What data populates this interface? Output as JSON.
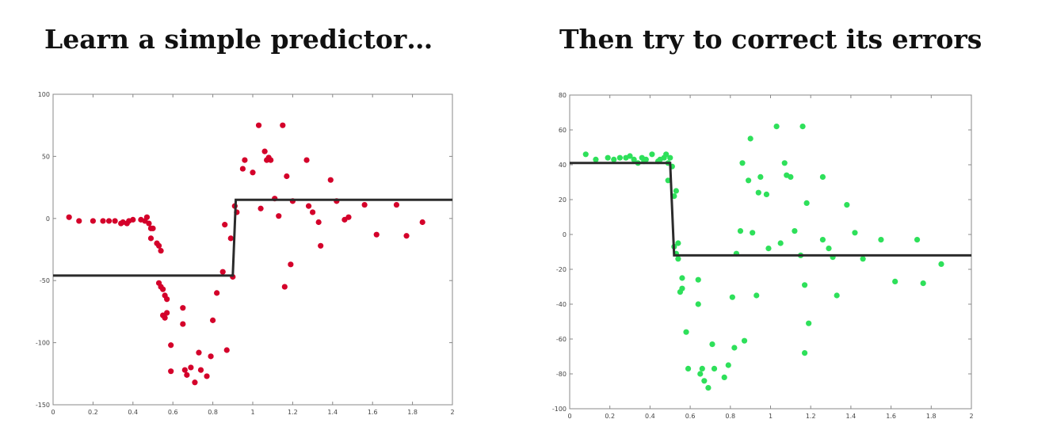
{
  "panels": [
    {
      "title": "Learn a simple predictor…"
    },
    {
      "title": "Then try to correct its errors"
    }
  ],
  "chart_data": [
    {
      "type": "scatter",
      "title": "Learn a simple predictor…",
      "xlim": [
        0,
        2
      ],
      "ylim": [
        -150,
        100
      ],
      "x_ticks": [
        0,
        0.2,
        0.4,
        0.6,
        0.8,
        1,
        1.2,
        1.4,
        1.6,
        1.8,
        2
      ],
      "x_tick_labels": [
        "0",
        "0.2",
        "0.4",
        "0.6",
        "0.8",
        "1",
        "1.2",
        "1.4",
        "1.6",
        "1.8",
        "2"
      ],
      "y_ticks": [
        -150,
        -100,
        -50,
        0,
        50,
        100
      ],
      "y_tick_labels": [
        "-150",
        "-100",
        "-50",
        "0",
        "50",
        "100"
      ],
      "grid": false,
      "point_color": "#d4002a",
      "line_color": "#2b2b2b",
      "points": [
        [
          0.08,
          1
        ],
        [
          0.13,
          -2
        ],
        [
          0.2,
          -2
        ],
        [
          0.25,
          -2
        ],
        [
          0.28,
          -2
        ],
        [
          0.31,
          -2
        ],
        [
          0.34,
          -4
        ],
        [
          0.35,
          -3
        ],
        [
          0.37,
          -4
        ],
        [
          0.38,
          -2
        ],
        [
          0.4,
          -1
        ],
        [
          0.44,
          -1
        ],
        [
          0.46,
          -2
        ],
        [
          0.47,
          1
        ],
        [
          0.48,
          -4
        ],
        [
          0.49,
          -8
        ],
        [
          0.49,
          -16
        ],
        [
          0.5,
          -8
        ],
        [
          0.52,
          -20
        ],
        [
          0.53,
          -22
        ],
        [
          0.54,
          -26
        ],
        [
          0.53,
          -52
        ],
        [
          0.54,
          -55
        ],
        [
          0.55,
          -57
        ],
        [
          0.56,
          -62
        ],
        [
          0.57,
          -65
        ],
        [
          0.55,
          -78
        ],
        [
          0.56,
          -80
        ],
        [
          0.57,
          -76
        ],
        [
          0.59,
          -102
        ],
        [
          0.59,
          -123
        ],
        [
          0.65,
          -72
        ],
        [
          0.65,
          -85
        ],
        [
          0.66,
          -122
        ],
        [
          0.67,
          -126
        ],
        [
          0.69,
          -120
        ],
        [
          0.71,
          -132
        ],
        [
          0.73,
          -108
        ],
        [
          0.74,
          -122
        ],
        [
          0.77,
          -127
        ],
        [
          0.79,
          -111
        ],
        [
          0.8,
          -82
        ],
        [
          0.82,
          -60
        ],
        [
          0.85,
          -43
        ],
        [
          0.87,
          -106
        ],
        [
          0.86,
          -5
        ],
        [
          0.89,
          -16
        ],
        [
          0.9,
          -47
        ],
        [
          0.91,
          10
        ],
        [
          0.92,
          5
        ],
        [
          0.95,
          40
        ],
        [
          0.96,
          47
        ],
        [
          1.0,
          37
        ],
        [
          1.03,
          75
        ],
        [
          1.04,
          8
        ],
        [
          1.06,
          54
        ],
        [
          1.07,
          47
        ],
        [
          1.08,
          49
        ],
        [
          1.09,
          47
        ],
        [
          1.11,
          16
        ],
        [
          1.13,
          2
        ],
        [
          1.15,
          75
        ],
        [
          1.16,
          -55
        ],
        [
          1.17,
          34
        ],
        [
          1.19,
          -37
        ],
        [
          1.2,
          14
        ],
        [
          1.27,
          47
        ],
        [
          1.28,
          10
        ],
        [
          1.3,
          5
        ],
        [
          1.33,
          -3
        ],
        [
          1.34,
          -22
        ],
        [
          1.39,
          31
        ],
        [
          1.42,
          14
        ],
        [
          1.46,
          -1
        ],
        [
          1.48,
          1
        ],
        [
          1.56,
          11
        ],
        [
          1.62,
          -13
        ],
        [
          1.72,
          11
        ],
        [
          1.77,
          -14
        ],
        [
          1.85,
          -3
        ]
      ],
      "fit_line": [
        [
          0,
          -46
        ],
        [
          0.9,
          -46
        ],
        [
          0.915,
          15
        ],
        [
          2,
          15
        ]
      ]
    },
    {
      "type": "scatter",
      "title": "Then try to correct its errors",
      "xlim": [
        0,
        2
      ],
      "ylim": [
        -100,
        80
      ],
      "x_ticks": [
        0,
        0.2,
        0.4,
        0.6,
        0.8,
        1,
        1.2,
        1.4,
        1.6,
        1.8,
        2
      ],
      "x_tick_labels": [
        "0",
        "0.2",
        "0.4",
        "0.6",
        "0.8",
        "1",
        "1.2",
        "1.4",
        "1.6",
        "1.8",
        "2"
      ],
      "y_ticks": [
        -100,
        -80,
        -60,
        -40,
        -20,
        0,
        20,
        40,
        60,
        80
      ],
      "y_tick_labels": [
        "-100",
        "-80",
        "-60",
        "-40",
        "-20",
        "0",
        "20",
        "40",
        "60",
        "80"
      ],
      "grid": false,
      "point_color": "#2ee05a",
      "line_color": "#2b2b2b",
      "points": [
        [
          0.08,
          46
        ],
        [
          0.13,
          43
        ],
        [
          0.19,
          44
        ],
        [
          0.22,
          43
        ],
        [
          0.25,
          44
        ],
        [
          0.28,
          44
        ],
        [
          0.3,
          45
        ],
        [
          0.32,
          43
        ],
        [
          0.34,
          41
        ],
        [
          0.36,
          44
        ],
        [
          0.37,
          42
        ],
        [
          0.38,
          43
        ],
        [
          0.41,
          46
        ],
        [
          0.44,
          42
        ],
        [
          0.45,
          43
        ],
        [
          0.47,
          44
        ],
        [
          0.48,
          46
        ],
        [
          0.49,
          41
        ],
        [
          0.49,
          31
        ],
        [
          0.5,
          44
        ],
        [
          0.51,
          39
        ],
        [
          0.52,
          22
        ],
        [
          0.53,
          25
        ],
        [
          0.52,
          -7
        ],
        [
          0.53,
          -11
        ],
        [
          0.54,
          -5
        ],
        [
          0.54,
          -14
        ],
        [
          0.55,
          -33
        ],
        [
          0.56,
          -31
        ],
        [
          0.56,
          -25
        ],
        [
          0.58,
          -56
        ],
        [
          0.59,
          -77
        ],
        [
          0.64,
          -26
        ],
        [
          0.64,
          -40
        ],
        [
          0.65,
          -80
        ],
        [
          0.66,
          -77
        ],
        [
          0.67,
          -84
        ],
        [
          0.69,
          -88
        ],
        [
          0.71,
          -63
        ],
        [
          0.72,
          -77
        ],
        [
          0.77,
          -82
        ],
        [
          0.79,
          -75
        ],
        [
          0.81,
          -36
        ],
        [
          0.82,
          -65
        ],
        [
          0.83,
          -11
        ],
        [
          0.85,
          2
        ],
        [
          0.86,
          41
        ],
        [
          0.87,
          -61
        ],
        [
          0.89,
          31
        ],
        [
          0.9,
          55
        ],
        [
          0.91,
          1
        ],
        [
          0.93,
          -35
        ],
        [
          0.94,
          24
        ],
        [
          0.95,
          33
        ],
        [
          0.98,
          23
        ],
        [
          0.99,
          -8
        ],
        [
          1.03,
          62
        ],
        [
          1.05,
          -5
        ],
        [
          1.07,
          41
        ],
        [
          1.08,
          34
        ],
        [
          1.1,
          33
        ],
        [
          1.12,
          2
        ],
        [
          1.15,
          -12
        ],
        [
          1.16,
          62
        ],
        [
          1.17,
          -29
        ],
        [
          1.17,
          -68
        ],
        [
          1.18,
          18
        ],
        [
          1.19,
          -51
        ],
        [
          1.26,
          33
        ],
        [
          1.26,
          -3
        ],
        [
          1.29,
          -8
        ],
        [
          1.31,
          -13
        ],
        [
          1.33,
          -35
        ],
        [
          1.38,
          17
        ],
        [
          1.42,
          1
        ],
        [
          1.46,
          -14
        ],
        [
          1.55,
          -3
        ],
        [
          1.62,
          -27
        ],
        [
          1.73,
          -3
        ],
        [
          1.76,
          -28
        ],
        [
          1.85,
          -17
        ]
      ],
      "fit_line": [
        [
          0,
          41
        ],
        [
          0.5,
          41
        ],
        [
          0.52,
          -12
        ],
        [
          2,
          -12
        ]
      ]
    }
  ]
}
